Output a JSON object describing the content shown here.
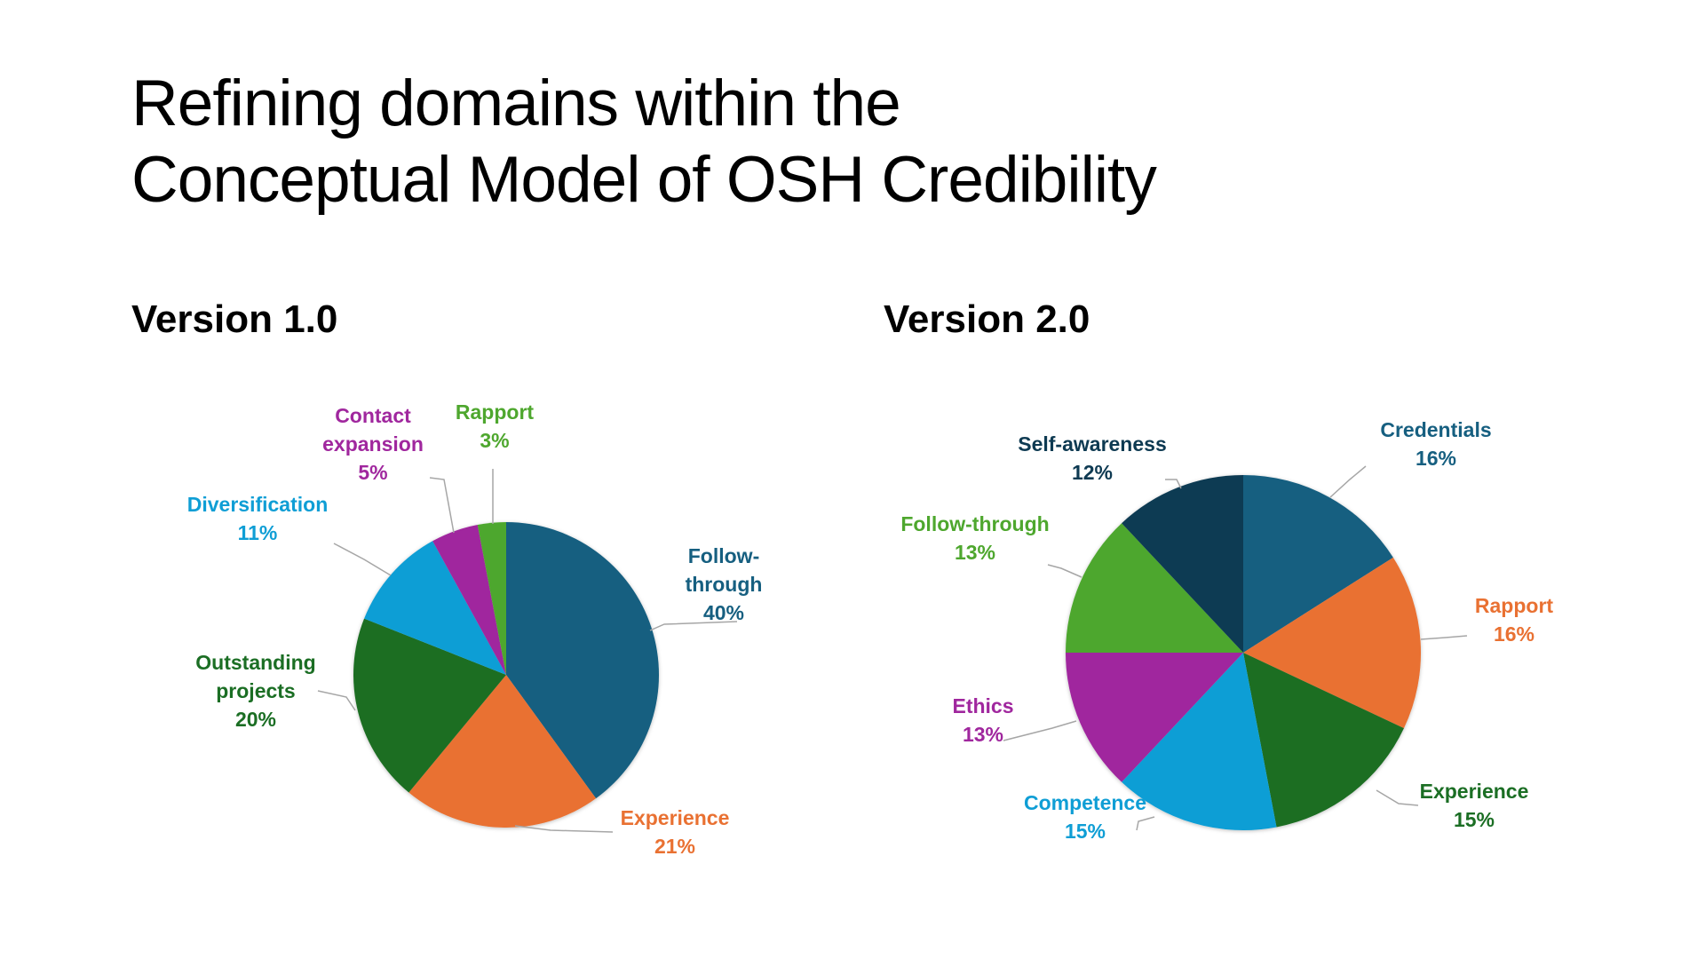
{
  "title": {
    "line1": "Refining domains within the",
    "line2": "Conceptual Model of OSH Credibility"
  },
  "chart_data": [
    {
      "type": "pie",
      "title": "Version 1.0",
      "slices": [
        {
          "label": [
            "Follow-",
            "through"
          ],
          "value": 40,
          "display": "40%",
          "color": "#165f80"
        },
        {
          "label": [
            "Experience"
          ],
          "value": 21,
          "display": "21%",
          "color": "#e97132"
        },
        {
          "label": [
            "Outstanding",
            "projects"
          ],
          "value": 20,
          "display": "20%",
          "color": "#1b6e24"
        },
        {
          "label": [
            "Diversification"
          ],
          "value": 11,
          "display": "11%",
          "color": "#0f9ed5"
        },
        {
          "label": [
            "Contact",
            "expansion"
          ],
          "value": 5,
          "display": "5%",
          "color": "#a0279e"
        },
        {
          "label": [
            "Rapport"
          ],
          "value": 3,
          "display": "3%",
          "color": "#4ea72e"
        }
      ]
    },
    {
      "type": "pie",
      "title": "Version 2.0",
      "slices": [
        {
          "label": [
            "Credentials"
          ],
          "value": 16,
          "display": "16%",
          "color": "#165f80"
        },
        {
          "label": [
            "Rapport"
          ],
          "value": 16,
          "display": "16%",
          "color": "#e97132"
        },
        {
          "label": [
            "Experience"
          ],
          "value": 15,
          "display": "15%",
          "color": "#1b6e24"
        },
        {
          "label": [
            "Competence"
          ],
          "value": 15,
          "display": "15%",
          "color": "#0f9ed5"
        },
        {
          "label": [
            "Ethics"
          ],
          "value": 13,
          "display": "13%",
          "color": "#a0279e"
        },
        {
          "label": [
            "Follow-through"
          ],
          "value": 13,
          "display": "13%",
          "color": "#4ea72e"
        },
        {
          "label": [
            "Self-awareness"
          ],
          "value": 12,
          "display": "12%",
          "color": "#0e3a52"
        }
      ]
    }
  ]
}
